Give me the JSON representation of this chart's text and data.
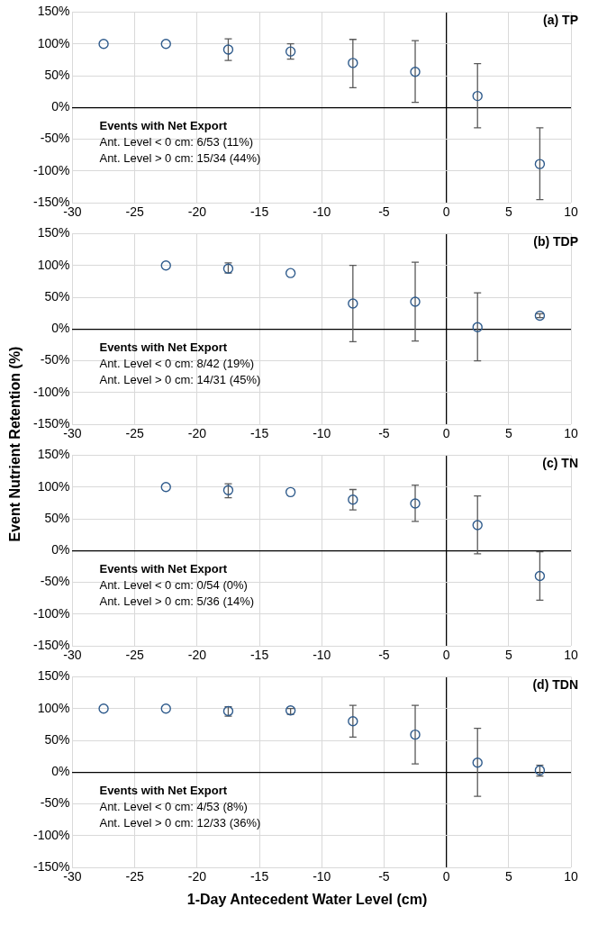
{
  "chart_data": [
    {
      "type": "scatter",
      "title": "(a) TP",
      "x": [
        -27.5,
        -22.5,
        -17.5,
        -12.5,
        -7.5,
        -2.5,
        2.5,
        7.5
      ],
      "series": [
        {
          "color": "#2f5b8c",
          "values": [
            100,
            100,
            91,
            88,
            70,
            56,
            18,
            -89
          ],
          "errors": [
            null,
            null,
            [
              74,
              108
            ],
            [
              76,
              100
            ],
            [
              31,
              107
            ],
            [
              8,
              105
            ],
            [
              -32,
              69
            ],
            [
              -145,
              -32
            ]
          ]
        }
      ],
      "xlim": [
        -30,
        10
      ],
      "xticks": [
        -30,
        -25,
        -20,
        -15,
        -10,
        -5,
        0,
        5,
        10
      ],
      "ylim": [
        -150,
        150
      ],
      "yticks": [
        {
          "value": -150,
          "label": "-150%"
        },
        {
          "value": -100,
          "label": "-100%"
        },
        {
          "value": -50,
          "label": "-50%"
        },
        {
          "value": 0,
          "label": "0%"
        },
        {
          "value": 50,
          "label": "50%"
        },
        {
          "value": 100,
          "label": "100%"
        },
        {
          "value": 150,
          "label": "150%"
        }
      ],
      "annotations": [
        "Events with Net Export",
        "Ant. Level < 0 cm: 6/53 (11%)",
        "Ant. Level > 0 cm: 15/34 (44%)"
      ],
      "grid": true,
      "legend": false,
      "marker": "circle"
    },
    {
      "type": "scatter",
      "title": "(b) TDP",
      "ylabel": "Event Nutrient Retention (%)",
      "x": [
        -22.5,
        -17.5,
        -12.5,
        -7.5,
        -2.5,
        2.5,
        7.5
      ],
      "series": [
        {
          "color": "#2f5b8c",
          "values": [
            100,
            95,
            88,
            40,
            43,
            3,
            21
          ],
          "errors": [
            null,
            [
              88,
              104
            ],
            null,
            [
              -20,
              100
            ],
            [
              -19,
              105
            ],
            [
              -50,
              57
            ],
            [
              18,
              24
            ]
          ]
        }
      ],
      "xlim": [
        -30,
        10
      ],
      "xticks": [
        -30,
        -25,
        -20,
        -15,
        -10,
        -5,
        0,
        5,
        10
      ],
      "ylim": [
        -150,
        150
      ],
      "yticks": [
        {
          "value": -150,
          "label": "-150%"
        },
        {
          "value": -100,
          "label": "-100%"
        },
        {
          "value": -50,
          "label": "-50%"
        },
        {
          "value": 0,
          "label": "0%"
        },
        {
          "value": 50,
          "label": "50%"
        },
        {
          "value": 100,
          "label": "100%"
        },
        {
          "value": 150,
          "label": "150%"
        }
      ],
      "annotations": [
        "Events with Net Export",
        "Ant. Level < 0 cm: 8/42 (19%)",
        "Ant. Level > 0 cm: 14/31 (45%)"
      ],
      "grid": true,
      "legend": false,
      "marker": "circle"
    },
    {
      "type": "scatter",
      "title": "(c) TN",
      "x": [
        -22.5,
        -17.5,
        -12.5,
        -7.5,
        -2.5,
        2.5,
        7.5
      ],
      "series": [
        {
          "color": "#2f5b8c",
          "values": [
            100,
            95,
            92,
            80,
            74,
            40,
            -40
          ],
          "errors": [
            null,
            [
              83,
              105
            ],
            null,
            [
              64,
              96
            ],
            [
              46,
              103
            ],
            [
              -5,
              86
            ],
            [
              -78,
              -2
            ]
          ]
        }
      ],
      "xlim": [
        -30,
        10
      ],
      "xticks": [
        -30,
        -25,
        -20,
        -15,
        -10,
        -5,
        0,
        5,
        10
      ],
      "ylim": [
        -150,
        150
      ],
      "yticks": [
        {
          "value": -150,
          "label": "-150%"
        },
        {
          "value": -100,
          "label": "-100%"
        },
        {
          "value": -50,
          "label": "-50%"
        },
        {
          "value": 0,
          "label": "0%"
        },
        {
          "value": 50,
          "label": "50%"
        },
        {
          "value": 100,
          "label": "100%"
        },
        {
          "value": 150,
          "label": "150%"
        }
      ],
      "annotations": [
        "Events with Net Export",
        "Ant. Level < 0 cm: 0/54 (0%)",
        "Ant. Level > 0 cm: 5/36 (14%)"
      ],
      "grid": true,
      "legend": false,
      "marker": "circle"
    },
    {
      "type": "scatter",
      "title": "(d) TDN",
      "xlabel": "1-Day Antecedent Water Level (cm)",
      "x": [
        -27.5,
        -22.5,
        -17.5,
        -12.5,
        -7.5,
        -2.5,
        2.5,
        7.5
      ],
      "series": [
        {
          "color": "#2f5b8c",
          "values": [
            100,
            100,
            96,
            97,
            80,
            59,
            15,
            3
          ],
          "errors": [
            null,
            null,
            [
              88,
              103
            ],
            [
              91,
              100
            ],
            [
              55,
              105
            ],
            [
              13,
              105
            ],
            [
              -38,
              69
            ],
            [
              -6,
              11
            ]
          ]
        }
      ],
      "xlim": [
        -30,
        10
      ],
      "xticks": [
        -30,
        -25,
        -20,
        -15,
        -10,
        -5,
        0,
        5,
        10
      ],
      "ylim": [
        -150,
        150
      ],
      "yticks": [
        {
          "value": -150,
          "label": "-150%"
        },
        {
          "value": -100,
          "label": "-100%"
        },
        {
          "value": -50,
          "label": "-50%"
        },
        {
          "value": 0,
          "label": "0%"
        },
        {
          "value": 50,
          "label": "50%"
        },
        {
          "value": 100,
          "label": "100%"
        },
        {
          "value": 150,
          "label": "150%"
        }
      ],
      "annotations": [
        "Events with Net Export",
        "Ant. Level < 0 cm: 4/53 (8%)",
        "Ant. Level > 0 cm: 12/33 (36%)"
      ],
      "grid": true,
      "legend": false,
      "marker": "circle"
    }
  ]
}
